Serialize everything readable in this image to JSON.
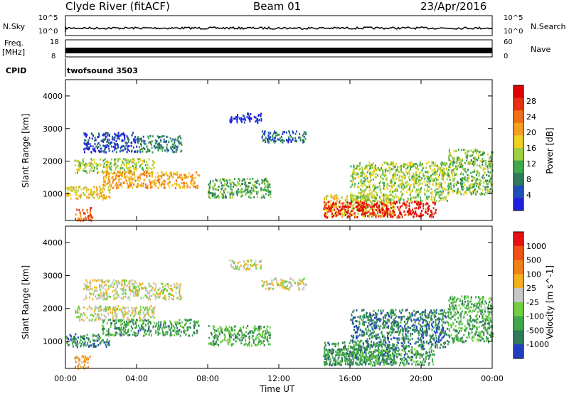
{
  "header": {
    "station": "Clyde River (fitACF)",
    "beam": "Beam 01",
    "date": "23/Apr/2016"
  },
  "summary": {
    "nsky_label": "N.Sky",
    "nsky_ticks": [
      "10^5",
      "10^0"
    ],
    "nsearch_label": "N.Search",
    "nsearch_ticks": [
      "10^5",
      "10^0"
    ],
    "freq_label": [
      "Freq.",
      "[MHz]"
    ],
    "freq_ticks": [
      "18",
      "8"
    ],
    "nave_label": "Nave",
    "nave_ticks": [
      "60",
      "0"
    ],
    "cpid_label": "CPID",
    "cpid_value": "twofsound 3503"
  },
  "colors": {
    "power": [
      "#1f1fe0",
      "#1f4fb8",
      "#2e7a5a",
      "#3fa84a",
      "#a0d040",
      "#f0d020",
      "#f5a020",
      "#f07018",
      "#e83010",
      "#e00000"
    ],
    "velocity": [
      "#2040c0",
      "#2e7a5a",
      "#3fa84a",
      "#70d040",
      "#c8c8c8",
      "#f5b020",
      "#f08018",
      "#f05010",
      "#e81010"
    ]
  },
  "chart_data": [
    {
      "type": "heatmap",
      "parameter": "power",
      "xlabel": "Time UT",
      "ylabel": "Slant Range [km]",
      "xlim": [
        "00:00",
        "24:00"
      ],
      "ylim": [
        180,
        4500
      ],
      "x_ticks": [
        "00:00",
        "04:00",
        "08:00",
        "12:00",
        "16:00",
        "20:00",
        "00:00"
      ],
      "y_ticks": [
        "1000",
        "2000",
        "3000",
        "4000"
      ],
      "colorbar": {
        "label": "Power [dB]",
        "range": [
          0,
          30
        ],
        "ticks": [
          "28",
          "24",
          "20",
          "16",
          "12",
          "8",
          "4"
        ]
      },
      "regions": [
        {
          "t": [
            0.0,
            2.5
          ],
          "r": [
            850,
            1250
          ],
          "level": 0.55
        },
        {
          "t": [
            0.5,
            5.0
          ],
          "r": [
            1650,
            2100
          ],
          "level": 0.45
        },
        {
          "t": [
            2.0,
            7.5
          ],
          "r": [
            1200,
            1700
          ],
          "level": 0.65
        },
        {
          "t": [
            0.5,
            1.5
          ],
          "r": [
            200,
            600
          ],
          "level": 0.75
        },
        {
          "t": [
            1.0,
            4.0
          ],
          "r": [
            2300,
            2900
          ],
          "level": 0.12
        },
        {
          "t": [
            4.0,
            6.5
          ],
          "r": [
            2300,
            2800
          ],
          "level": 0.25
        },
        {
          "t": [
            8.0,
            11.5
          ],
          "r": [
            900,
            1500
          ],
          "level": 0.35
        },
        {
          "t": [
            9.2,
            11.0
          ],
          "r": [
            3200,
            3500
          ],
          "level": 0.05
        },
        {
          "t": [
            11.0,
            13.5
          ],
          "r": [
            2600,
            2950
          ],
          "level": 0.2
        },
        {
          "t": [
            14.5,
            18.5
          ],
          "r": [
            300,
            1000
          ],
          "level": 0.55
        },
        {
          "t": [
            14.5,
            20.8
          ],
          "r": [
            300,
            800
          ],
          "level": 0.92
        },
        {
          "t": [
            16.0,
            21.5
          ],
          "r": [
            800,
            2000
          ],
          "level": 0.45
        },
        {
          "t": [
            21.5,
            24.0
          ],
          "r": [
            1000,
            2400
          ],
          "level": 0.4
        }
      ]
    },
    {
      "type": "heatmap",
      "parameter": "velocity",
      "xlabel": "Time UT",
      "ylabel": "Slant Range [km]",
      "xlim": [
        "00:00",
        "24:00"
      ],
      "ylim": [
        180,
        4500
      ],
      "x_ticks": [
        "00:00",
        "04:00",
        "08:00",
        "12:00",
        "16:00",
        "20:00",
        "00:00"
      ],
      "y_ticks": [
        "1000",
        "2000",
        "3000",
        "4000"
      ],
      "colorbar": {
        "label": "Velocity [m s^-1]",
        "range": [
          -1200,
          1200
        ],
        "ticks": [
          "1000",
          "500",
          "100",
          "25",
          "-25",
          "-100",
          "-500",
          "-1000"
        ]
      },
      "regions": [
        {
          "t": [
            0.0,
            2.5
          ],
          "r": [
            850,
            1250
          ],
          "level": 0.2
        },
        {
          "t": [
            0.5,
            5.0
          ],
          "r": [
            1650,
            2100
          ],
          "level": 0.5
        },
        {
          "t": [
            2.0,
            7.5
          ],
          "r": [
            1200,
            1700
          ],
          "level": 0.25
        },
        {
          "t": [
            0.5,
            1.5
          ],
          "r": [
            200,
            600
          ],
          "level": 0.6
        },
        {
          "t": [
            1.0,
            4.0
          ],
          "r": [
            2300,
            2900
          ],
          "level": 0.5
        },
        {
          "t": [
            4.0,
            6.5
          ],
          "r": [
            2300,
            2800
          ],
          "level": 0.5
        },
        {
          "t": [
            8.0,
            11.5
          ],
          "r": [
            900,
            1500
          ],
          "level": 0.3
        },
        {
          "t": [
            9.2,
            11.0
          ],
          "r": [
            3200,
            3500
          ],
          "level": 0.5
        },
        {
          "t": [
            11.0,
            13.5
          ],
          "r": [
            2600,
            2950
          ],
          "level": 0.5
        },
        {
          "t": [
            14.5,
            18.5
          ],
          "r": [
            300,
            1000
          ],
          "level": 0.22
        },
        {
          "t": [
            14.5,
            20.8
          ],
          "r": [
            300,
            800
          ],
          "level": 0.25
        },
        {
          "t": [
            16.0,
            21.5
          ],
          "r": [
            800,
            2000
          ],
          "level": 0.18
        },
        {
          "t": [
            21.5,
            24.0
          ],
          "r": [
            1000,
            2400
          ],
          "level": 0.3
        }
      ]
    }
  ]
}
